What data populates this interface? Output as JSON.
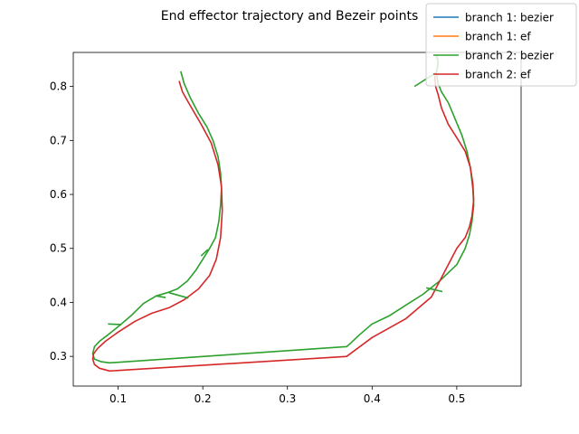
{
  "chart_data": {
    "type": "line",
    "title": "End effector trajectory and Bezeir points",
    "xlabel": "",
    "ylabel": "",
    "xlim": [
      0.047,
      0.576
    ],
    "ylim": [
      0.245,
      0.863
    ],
    "x_ticks": [
      0.1,
      0.2,
      0.3,
      0.4,
      0.5
    ],
    "y_ticks": [
      0.3,
      0.4,
      0.5,
      0.6,
      0.7,
      0.8
    ],
    "x_tick_labels": [
      "0.1",
      "0.2",
      "0.3",
      "0.4",
      "0.5"
    ],
    "y_tick_labels": [
      "0.3",
      "0.4",
      "0.5",
      "0.6",
      "0.7",
      "0.8"
    ],
    "grid": false,
    "legend_position": "top-right",
    "series": [
      {
        "name": "branch 1: bezier",
        "color": "#1f77b4",
        "x": [],
        "y": []
      },
      {
        "name": "branch 1: ef",
        "color": "#ff7f0e",
        "x": [],
        "y": []
      },
      {
        "name": "branch 2: bezier",
        "color": "#2ca02c",
        "x": [
          0.174,
          0.178,
          0.185,
          0.195,
          0.205,
          0.212,
          0.218,
          0.221,
          0.222,
          0.221,
          0.219,
          0.215,
          0.208,
          0.2,
          0.192,
          0.182,
          0.17,
          0.158,
          0.145,
          0.13,
          0.115,
          0.1,
          0.088,
          0.078,
          0.072,
          0.07,
          0.072,
          0.08,
          0.09,
          0.37,
          0.375,
          0.385,
          0.4,
          0.42,
          0.44,
          0.46,
          0.48,
          0.5,
          0.51,
          0.515,
          0.518,
          0.52,
          0.519,
          0.516,
          0.512,
          0.506,
          0.498,
          0.49,
          0.482,
          0.478,
          0.476,
          0.478,
          0.476
        ],
        "y": [
          0.828,
          0.805,
          0.78,
          0.75,
          0.725,
          0.7,
          0.67,
          0.64,
          0.61,
          0.58,
          0.55,
          0.52,
          0.5,
          0.48,
          0.46,
          0.44,
          0.425,
          0.418,
          0.412,
          0.398,
          0.375,
          0.355,
          0.34,
          0.328,
          0.318,
          0.305,
          0.295,
          0.29,
          0.288,
          0.318,
          0.325,
          0.34,
          0.36,
          0.375,
          0.395,
          0.415,
          0.44,
          0.47,
          0.5,
          0.525,
          0.55,
          0.58,
          0.61,
          0.65,
          0.68,
          0.71,
          0.74,
          0.77,
          0.79,
          0.805,
          0.825,
          0.845,
          0.858
        ]
      },
      {
        "name": "branch 2: ef",
        "color": "#d62728",
        "x": [
          0.172,
          0.176,
          0.185,
          0.198,
          0.21,
          0.218,
          0.222,
          0.223,
          0.221,
          0.216,
          0.208,
          0.195,
          0.178,
          0.16,
          0.14,
          0.12,
          0.1,
          0.085,
          0.076,
          0.071,
          0.07,
          0.072,
          0.078,
          0.09,
          0.37,
          0.4,
          0.44,
          0.47,
          0.5,
          0.51,
          0.515,
          0.518,
          0.52,
          0.519,
          0.516,
          0.51,
          0.5,
          0.49,
          0.482,
          0.478,
          0.475,
          0.474
        ],
        "y": [
          0.81,
          0.79,
          0.765,
          0.73,
          0.695,
          0.655,
          0.615,
          0.57,
          0.52,
          0.48,
          0.45,
          0.425,
          0.405,
          0.39,
          0.38,
          0.365,
          0.345,
          0.328,
          0.315,
          0.305,
          0.295,
          0.285,
          0.278,
          0.273,
          0.3,
          0.335,
          0.37,
          0.41,
          0.5,
          0.52,
          0.54,
          0.56,
          0.59,
          0.62,
          0.65,
          0.68,
          0.705,
          0.73,
          0.76,
          0.785,
          0.8,
          0.82
        ]
      }
    ],
    "bezier_markers": [
      {
        "x": [
          0.088,
          0.104
        ],
        "y": [
          0.36,
          0.359
        ]
      },
      {
        "x": [
          0.145,
          0.156
        ],
        "y": [
          0.412,
          0.409
        ]
      },
      {
        "x": [
          0.16,
          0.183
        ],
        "y": [
          0.418,
          0.408
        ]
      },
      {
        "x": [
          0.198,
          0.206
        ],
        "y": [
          0.486,
          0.498
        ]
      },
      {
        "x": [
          0.464,
          0.483
        ],
        "y": [
          0.427,
          0.42
        ]
      },
      {
        "x": [
          0.45,
          0.476
        ],
        "y": [
          0.8,
          0.826
        ]
      }
    ]
  }
}
